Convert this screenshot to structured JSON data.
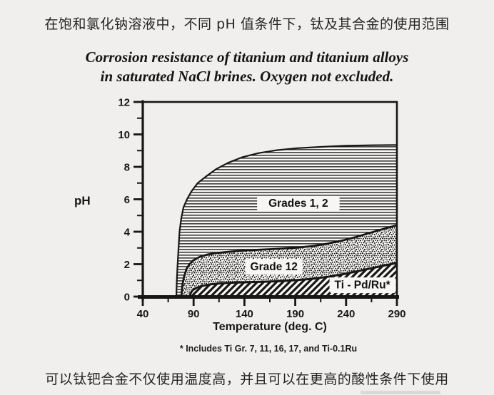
{
  "page": {
    "top_caption": "在饱和氯化钠溶液中，不同 pH 值条件下，钛及其合金的使用范围",
    "bottom_caption": "可以钛钯合金不仅使用温度高，并且可以在更高的酸性条件下使用"
  },
  "figure": {
    "title_line1": "Corrosion resistance of titanium and titanium alloys",
    "title_line2": "in saturated NaCl brines.  Oxygen not excluded.",
    "footnote": "* Includes Ti Gr. 7, 11, 16, 17, and Ti-0.1Ru"
  },
  "chart_data": {
    "type": "area",
    "title": "Corrosion resistance of titanium and titanium alloys in saturated NaCl brines. Oxygen not excluded.",
    "xlabel": "Temperature (deg. C)",
    "ylabel": "pH",
    "xlim": [
      40,
      290
    ],
    "ylim": [
      0,
      12
    ],
    "x_ticks_major": [
      40,
      90,
      140,
      190,
      240,
      290
    ],
    "x_ticks_minor": [
      65,
      115,
      165,
      215,
      265
    ],
    "y_ticks_major": [
      0,
      2,
      4,
      6,
      8,
      10,
      12
    ],
    "y_ticks_minor": [
      1,
      3,
      5,
      7,
      9,
      11
    ],
    "grid": false,
    "legend_position": "inline-labels",
    "series": [
      {
        "name": "Grades 1, 2",
        "pattern": "hlines",
        "label_pos": {
          "T": 193,
          "pH": 5.75
        },
        "boundary": [
          [
            73,
            0
          ],
          [
            73.5,
            1
          ],
          [
            74.3,
            2
          ],
          [
            75.2,
            3
          ],
          [
            76.2,
            4
          ],
          [
            77.8,
            4.8
          ],
          [
            80,
            5.5
          ],
          [
            83.5,
            6.0
          ],
          [
            88,
            6.5
          ],
          [
            94,
            7.0
          ],
          [
            102,
            7.4
          ],
          [
            112,
            7.85
          ],
          [
            124,
            8.25
          ],
          [
            138,
            8.6
          ],
          [
            154,
            8.85
          ],
          [
            172,
            9.03
          ],
          [
            192,
            9.15
          ],
          [
            215,
            9.23
          ],
          [
            240,
            9.3
          ],
          [
            265,
            9.33
          ],
          [
            290,
            9.35
          ]
        ]
      },
      {
        "name": "Grade 12",
        "pattern": "stipple",
        "label_pos": {
          "T": 169,
          "pH": 1.85
        },
        "boundary": [
          [
            78,
            0
          ],
          [
            79,
            0.7
          ],
          [
            80.5,
            1.2
          ],
          [
            83,
            1.7
          ],
          [
            86,
            2.0
          ],
          [
            90,
            2.25
          ],
          [
            96,
            2.45
          ],
          [
            104,
            2.6
          ],
          [
            114,
            2.7
          ],
          [
            127,
            2.78
          ],
          [
            142,
            2.85
          ],
          [
            158,
            2.9
          ],
          [
            175,
            2.95
          ],
          [
            192,
            3.02
          ],
          [
            208,
            3.12
          ],
          [
            222,
            3.27
          ],
          [
            236,
            3.45
          ],
          [
            250,
            3.68
          ],
          [
            263,
            3.92
          ],
          [
            275,
            4.14
          ],
          [
            283,
            4.28
          ],
          [
            290,
            4.4
          ]
        ]
      },
      {
        "name": "Ti - Pd/Ru*",
        "pattern": "diag",
        "label_pos": {
          "T": 256,
          "pH": 0.72
        },
        "boundary": [
          [
            86,
            0
          ],
          [
            87,
            0.2
          ],
          [
            89,
            0.4
          ],
          [
            93,
            0.55
          ],
          [
            99,
            0.67
          ],
          [
            107,
            0.76
          ],
          [
            117,
            0.82
          ],
          [
            130,
            0.86
          ],
          [
            145,
            0.89
          ],
          [
            160,
            0.92
          ],
          [
            176,
            0.96
          ],
          [
            192,
            1.02
          ],
          [
            207,
            1.1
          ],
          [
            222,
            1.22
          ],
          [
            237,
            1.38
          ],
          [
            252,
            1.58
          ],
          [
            265,
            1.75
          ],
          [
            276,
            1.9
          ],
          [
            284,
            2.0
          ],
          [
            290,
            2.07
          ]
        ]
      }
    ]
  },
  "colors": {
    "background": "#f0efed",
    "ink": "#161616",
    "pattern_bg": "#f7f6f4",
    "artifact_gray": "#c8c8c6"
  }
}
